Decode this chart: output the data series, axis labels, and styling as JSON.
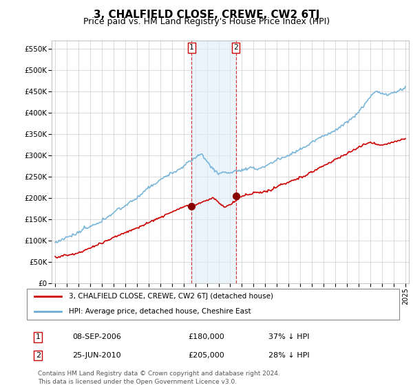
{
  "title": "3, CHALFIELD CLOSE, CREWE, CW2 6TJ",
  "subtitle": "Price paid vs. HM Land Registry's House Price Index (HPI)",
  "title_fontsize": 11,
  "subtitle_fontsize": 9,
  "hpi_color": "#6baed6",
  "price_color": "#cc0000",
  "sale1_date_x": 2006.69,
  "sale1_price": 180000,
  "sale2_date_x": 2010.48,
  "sale2_price": 205000,
  "ylim": [
    0,
    570000
  ],
  "yticks": [
    0,
    50000,
    100000,
    150000,
    200000,
    250000,
    300000,
    350000,
    400000,
    450000,
    500000,
    550000
  ],
  "xlim_start": 1994.7,
  "xlim_end": 2025.3,
  "xticks": [
    1995,
    1996,
    1997,
    1998,
    1999,
    2000,
    2001,
    2002,
    2003,
    2004,
    2005,
    2006,
    2007,
    2008,
    2009,
    2010,
    2011,
    2012,
    2013,
    2014,
    2015,
    2016,
    2017,
    2018,
    2019,
    2020,
    2021,
    2022,
    2023,
    2024,
    2025
  ],
  "legend_line1": "3, CHALFIELD CLOSE, CREWE, CW2 6TJ (detached house)",
  "legend_line2": "HPI: Average price, detached house, Cheshire East",
  "table_row1": [
    "1",
    "08-SEP-2006",
    "£180,000",
    "37% ↓ HPI"
  ],
  "table_row2": [
    "2",
    "25-JUN-2010",
    "£205,000",
    "28% ↓ HPI"
  ],
  "footer": "Contains HM Land Registry data © Crown copyright and database right 2024.\nThis data is licensed under the Open Government Licence v3.0.",
  "shading_color": "#ddeef7",
  "shading_alpha": 0.6,
  "vline_color": "#cc0000",
  "label_box_color": "#cc0000"
}
